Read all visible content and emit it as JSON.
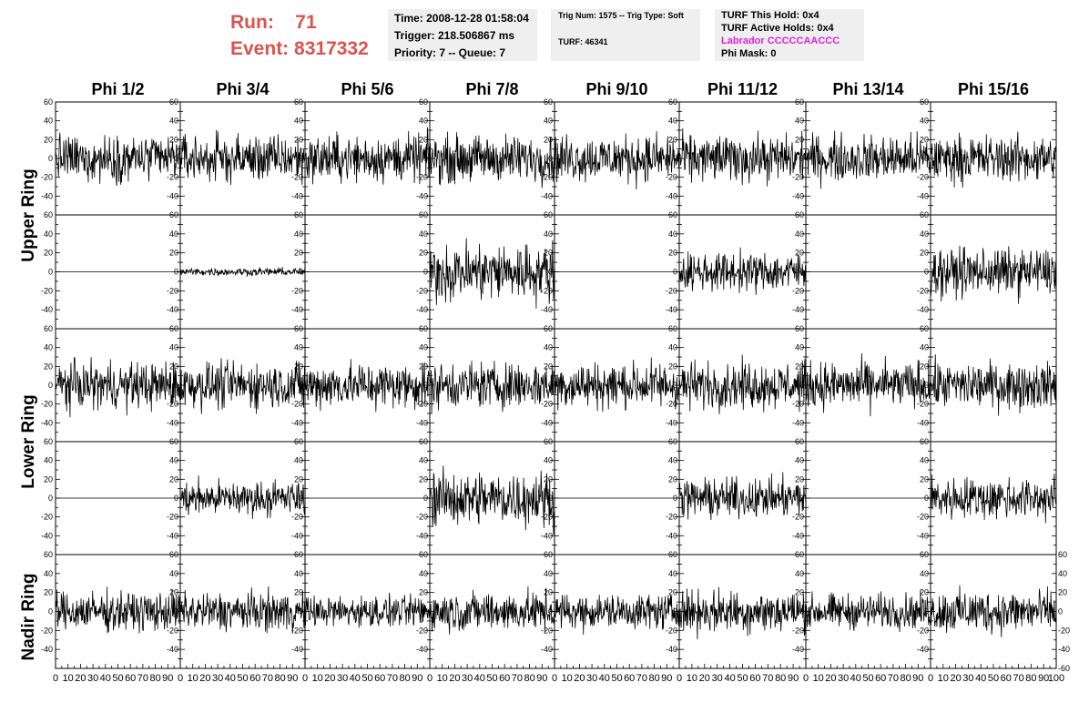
{
  "header": {
    "run_label": "Run:",
    "run_value": "71",
    "event_label": "Event:",
    "event_value": "8317332"
  },
  "info_time": {
    "time": "Time: 2008-12-28 01:58:04",
    "trigger": "Trigger: 218.506867 ms",
    "priority": "Priority: 7 -- Queue: 7"
  },
  "info_trig": {
    "trig": "Trig Num: 1575 -- Trig Type: Soft",
    "turf": "TURF: 46341"
  },
  "info_turf": {
    "this_hold": "TURF This Hold: 0x4",
    "active_holds": "TURF Active Holds: 0x4",
    "labrador": "Labrador CCCCCAACCC",
    "phi_mask": "Phi Mask: 0"
  },
  "colors": {
    "header_red": "#d9534f",
    "labrador_magenta": "#e020e0",
    "box_bg": "#efefef",
    "trace": "#000000"
  },
  "chart_data": {
    "type": "line",
    "columns": [
      "Phi 1/2",
      "Phi 3/4",
      "Phi 5/6",
      "Phi 7/8",
      "Phi 9/10",
      "Phi 11/12",
      "Phi 13/14",
      "Phi 15/16"
    ],
    "ring_labels": [
      "Upper Ring",
      "Lower Ring",
      "Nadir Ring"
    ],
    "ylim": [
      -60,
      60
    ],
    "yticks": [
      -40,
      -20,
      0,
      20,
      40,
      60
    ],
    "xlim": [
      0,
      100
    ],
    "xticks": [
      0,
      10,
      20,
      30,
      40,
      50,
      60,
      70,
      80,
      90,
      100
    ],
    "x_tick_labels": [
      "0",
      "10",
      "20",
      "30",
      "40",
      "50",
      "60",
      "70",
      "80",
      "90",
      "100"
    ],
    "bottom_tick_labels": [
      "-60",
      "-40",
      "-20",
      "0",
      "20",
      "40",
      "60"
    ],
    "samples_per_trace": 260,
    "trace_amplitude_grid": [
      [
        12,
        12,
        12,
        12,
        12,
        12,
        12,
        12
      ],
      [
        0,
        2,
        0,
        15,
        0,
        10,
        0,
        12
      ],
      [
        12,
        12,
        12,
        12,
        12,
        12,
        12,
        12
      ],
      [
        0,
        9,
        0,
        14,
        0,
        10,
        0,
        11
      ],
      [
        10,
        10,
        8,
        10,
        9,
        11,
        9,
        11
      ]
    ]
  }
}
